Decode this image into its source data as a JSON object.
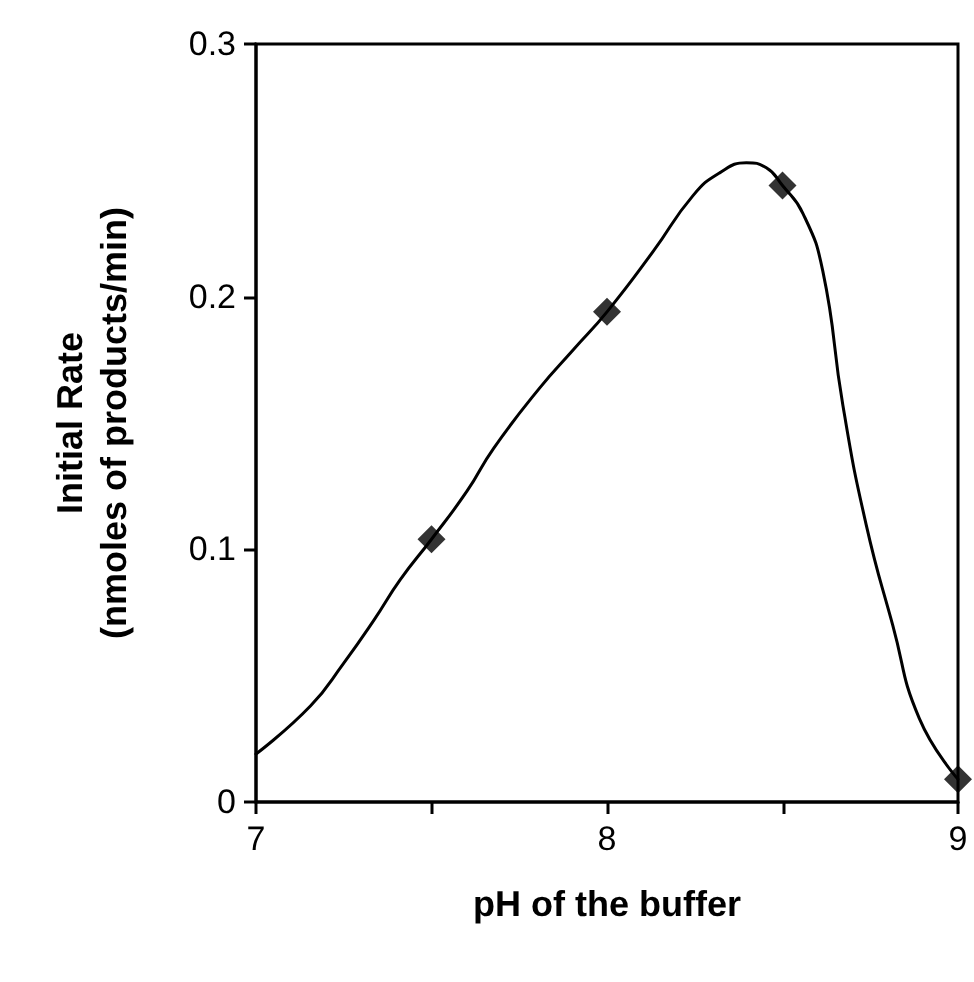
{
  "chart_data": {
    "type": "line",
    "xlabel": "pH of the buffer",
    "ylabel": "Initial Rate\n(nmoles of products/min)",
    "xlim": [
      7,
      9
    ],
    "xticks": [
      7,
      {
        "value": 7.5,
        "label": null
      },
      8,
      {
        "value": 8.5,
        "label": null
      },
      9
    ],
    "ylim": [
      0,
      0.3
    ],
    "yticks": [
      0,
      0.1,
      0.2,
      0.3
    ],
    "grid": false,
    "series": [
      {
        "color": "#000000",
        "marker": "none",
        "line_style": "solid",
        "x": [
          7,
          7.155,
          7.25,
          7.336,
          7.411,
          7.5,
          7.601,
          7.677,
          7.809,
          7.904,
          8,
          8.132,
          8.245,
          8.321,
          8.397,
          8.454,
          8.5,
          8.558,
          8.615,
          8.672,
          8.738,
          8.814,
          8.89,
          9
        ],
        "values": [
          0.019,
          0.038,
          0.055,
          0.072,
          0.088,
          0.104,
          0.123,
          0.14,
          0.164,
          0.179,
          0.194,
          0.218,
          0.24,
          0.249,
          0.253,
          0.251,
          0.244,
          0.233,
          0.21,
          0.157,
          0.11,
          0.07,
          0.033,
          0.009
        ]
      },
      {
        "type": "scatter",
        "color": "#000000",
        "marker": "diamond",
        "x": [
          7.5,
          8,
          8.5,
          9
        ],
        "values": [
          0.104,
          0.194,
          0.244,
          0.009
        ]
      }
    ]
  }
}
